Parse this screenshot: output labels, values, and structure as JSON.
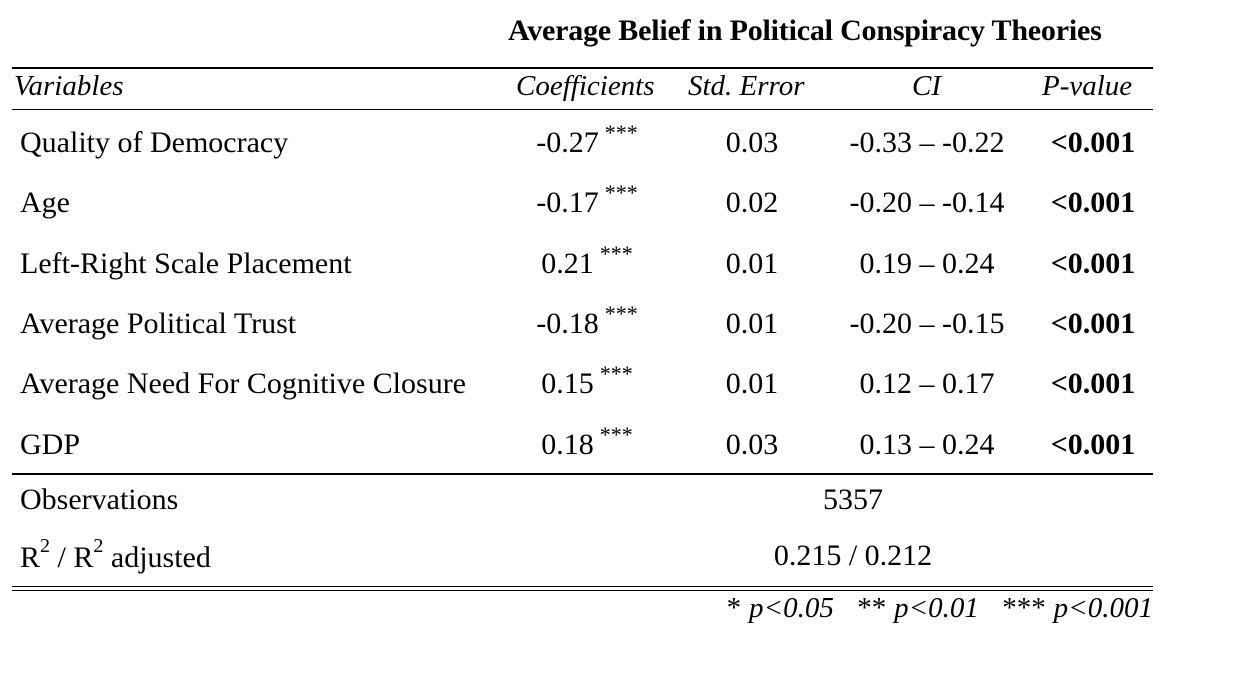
{
  "table": {
    "title": "Average Belief in Political Conspiracy Theories",
    "headers": {
      "variables": "Variables",
      "coefficients": "Coefficients",
      "std_error": "Std. Error",
      "ci": "CI",
      "p_value": "P-value"
    },
    "rows": [
      {
        "variable": "Quality of Democracy",
        "coef": "-0.27",
        "stars": "***",
        "se": "0.03",
        "ci": "-0.33 – -0.22",
        "p": "<0.001"
      },
      {
        "variable": "Age",
        "coef": "-0.17",
        "stars": "***",
        "se": "0.02",
        "ci": "-0.20 – -0.14",
        "p": "<0.001"
      },
      {
        "variable": "Left-Right Scale Placement",
        "coef": "0.21",
        "stars": "***",
        "se": "0.01",
        "ci": "0.19 – 0.24",
        "p": "<0.001"
      },
      {
        "variable": "Average Political Trust",
        "coef": "-0.18",
        "stars": "***",
        "se": "0.01",
        "ci": "-0.20 – -0.15",
        "p": "<0.001"
      },
      {
        "variable": "Average Need For Cognitive Closure",
        "coef": "0.15",
        "stars": "***",
        "se": "0.01",
        "ci": "0.12 – 0.17",
        "p": "<0.001"
      },
      {
        "variable": "GDP",
        "coef": "0.18",
        "stars": "***",
        "se": "0.03",
        "ci": "0.13 – 0.24",
        "p": "<0.001"
      }
    ],
    "observations": {
      "label": "Observations",
      "value": "5357"
    },
    "r2": {
      "label_r": "R",
      "label_sup": "2",
      "label_sep": " / R",
      "label_sup2": "2",
      "label_tail": " adjusted",
      "value": "0.215 / 0.212"
    },
    "notes": [
      "* p<0.05",
      "** p<0.01",
      "*** p<0.001"
    ]
  }
}
